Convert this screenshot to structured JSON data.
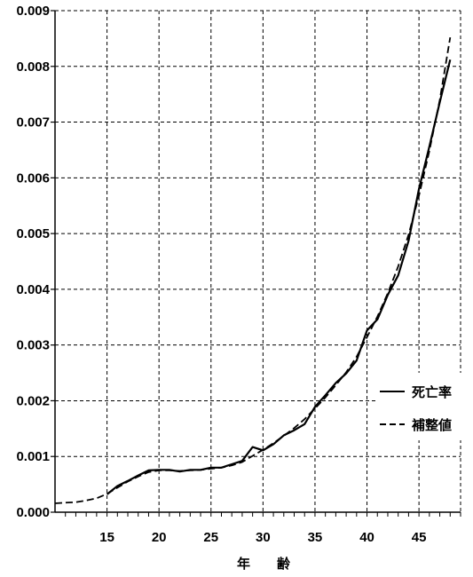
{
  "chart_data": {
    "type": "line",
    "title": "",
    "xlabel": "年　　齢",
    "ylabel": "",
    "xlim": [
      10,
      49
    ],
    "ylim": [
      0,
      0.009
    ],
    "x_ticks": [
      15,
      20,
      25,
      30,
      35,
      40,
      45
    ],
    "y_ticks": [
      "0.000",
      "0.001",
      "0.002",
      "0.003",
      "0.004",
      "0.005",
      "0.006",
      "0.007",
      "0.008",
      "0.009"
    ],
    "grid": true,
    "legend_position": "right",
    "series": [
      {
        "name": "死亡率",
        "style": "solid",
        "color": "#000000",
        "x": [
          15,
          16,
          17,
          18,
          19,
          20,
          21,
          22,
          23,
          24,
          25,
          26,
          27,
          28,
          29,
          30,
          31,
          32,
          33,
          34,
          35,
          36,
          37,
          38,
          39,
          40,
          41,
          42,
          43,
          44,
          45,
          46,
          47,
          48
        ],
        "y": [
          0.00032,
          0.00047,
          0.00056,
          0.00066,
          0.00075,
          0.00076,
          0.00076,
          0.00073,
          0.00076,
          0.00076,
          0.0008,
          0.0008,
          0.00086,
          0.00092,
          0.00117,
          0.00111,
          0.00122,
          0.00138,
          0.00147,
          0.00158,
          0.00189,
          0.0021,
          0.00232,
          0.00249,
          0.00272,
          0.00326,
          0.00346,
          0.0039,
          0.00425,
          0.00487,
          0.0058,
          0.00656,
          0.00736,
          0.00812
        ]
      },
      {
        "name": "補整値",
        "style": "dashed",
        "color": "#000000",
        "x": [
          10,
          11,
          12,
          13,
          14,
          15,
          16,
          17,
          18,
          19,
          20,
          21,
          22,
          23,
          24,
          25,
          26,
          27,
          28,
          29,
          30,
          31,
          32,
          33,
          34,
          35,
          36,
          37,
          38,
          39,
          40,
          41,
          42,
          43,
          44,
          45,
          46,
          47,
          48
        ],
        "y": [
          0.00016,
          0.00017,
          0.00018,
          0.00021,
          0.00025,
          0.00033,
          0.00044,
          0.00055,
          0.00064,
          0.00072,
          0.00075,
          0.00075,
          0.00074,
          0.00075,
          0.00076,
          0.00078,
          0.0008,
          0.00084,
          0.0009,
          0.00101,
          0.00112,
          0.00124,
          0.00137,
          0.00151,
          0.00167,
          0.00186,
          0.00206,
          0.00228,
          0.00251,
          0.00279,
          0.00314,
          0.00351,
          0.00393,
          0.00441,
          0.00498,
          0.00568,
          0.00648,
          0.0074,
          0.00852
        ]
      }
    ]
  }
}
